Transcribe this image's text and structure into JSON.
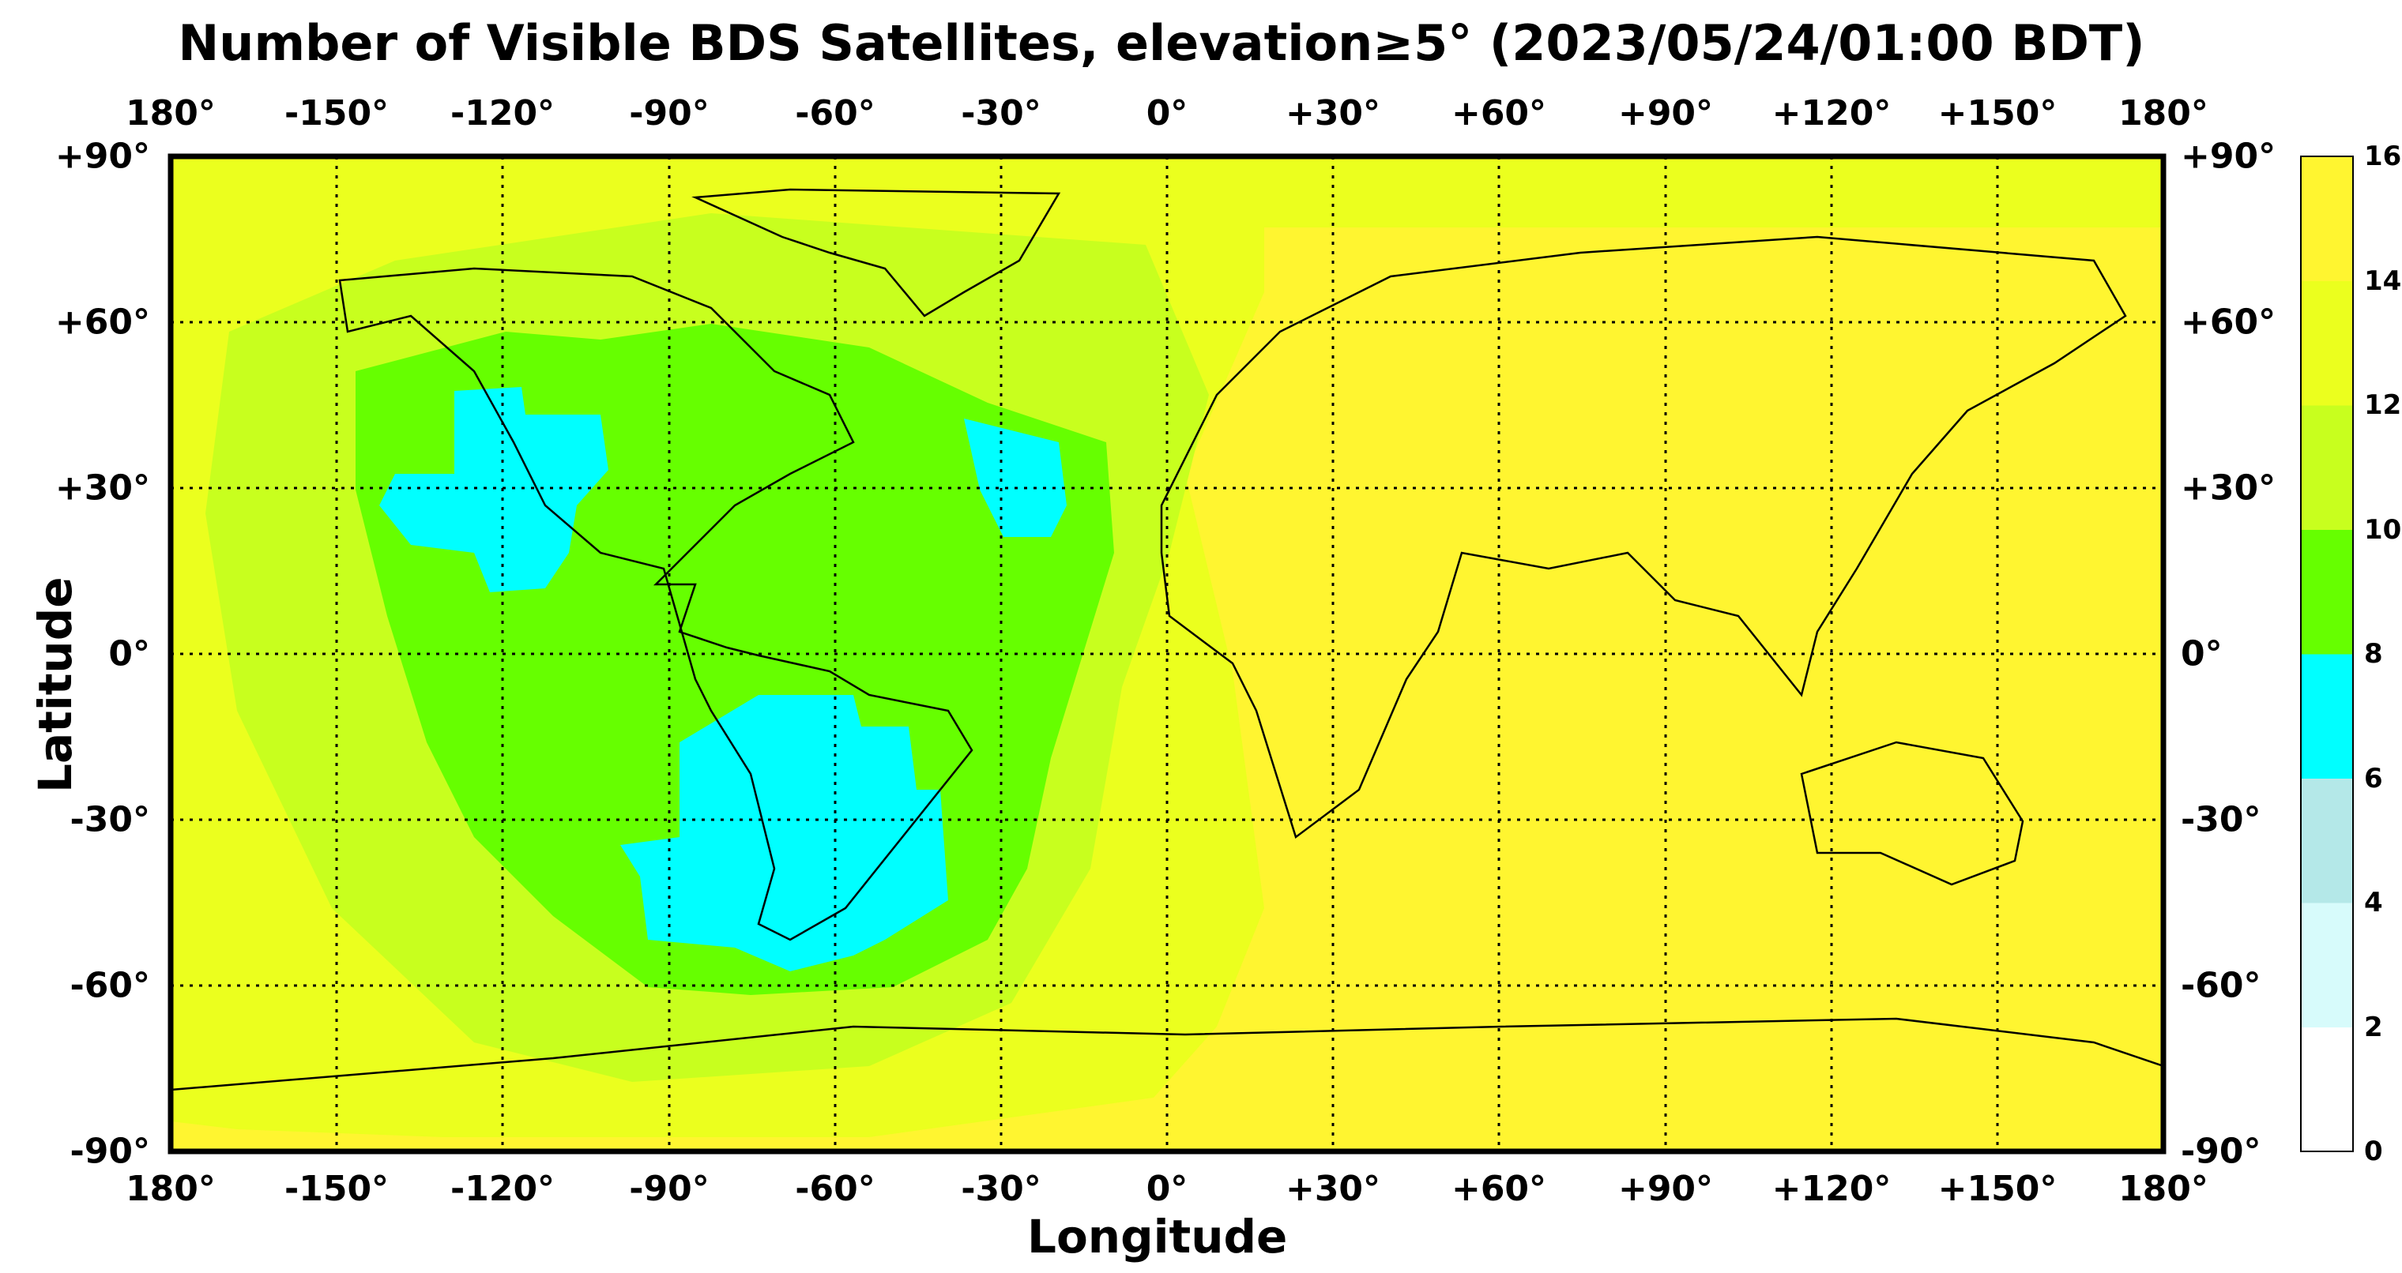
{
  "title": "Number of Visible BDS Satellites, elevation≥5° (2023/05/24/01:00 BDT)",
  "xlabel": "Longitude",
  "ylabel": "Latitude",
  "lon_ticks": [
    "180°",
    "-150°",
    "-120°",
    "-90°",
    "-60°",
    "-30°",
    "0°",
    "+30°",
    "+60°",
    "+90°",
    "+120°",
    "+150°",
    "180°"
  ],
  "lat_ticks": [
    "+90°",
    "+60°",
    "+30°",
    "0°",
    "-30°",
    "-60°",
    "-90°"
  ],
  "colorbar": {
    "ticks": [
      "16",
      "14",
      "12",
      "10",
      "8",
      "6",
      "4",
      "2",
      "0"
    ],
    "colors": [
      "#ffffff",
      "#d7fbfb",
      "#b4e8e8",
      "#00ffff",
      "#66ff00",
      "#c8ff1e",
      "#ebff1e",
      "#fff530"
    ]
  },
  "chart_data": {
    "type": "heatmap",
    "title": "Number of Visible BDS Satellites, elevation≥5° (2023/05/24/01:00 BDT)",
    "xlabel": "Longitude",
    "ylabel": "Latitude",
    "xlim": [
      -180,
      180
    ],
    "ylim": [
      -90,
      90
    ],
    "grid": true,
    "value_range": [
      0,
      16
    ],
    "levels": [
      0,
      2,
      4,
      6,
      8,
      10,
      12,
      14,
      16
    ],
    "regions": [
      {
        "value_range": [
          14,
          16
        ],
        "area": "Eastern hemisphere, Africa, Europe, Asia, Australia, Pacific"
      },
      {
        "value_range": [
          12,
          14
        ],
        "area": "Arctic band and outer Pacific ring"
      },
      {
        "value_range": [
          10,
          12
        ],
        "area": "Ring around Americas and South Atlantic"
      },
      {
        "value_range": [
          8,
          10
        ],
        "area": "Americas and Atlantic core"
      },
      {
        "value_range": [
          6,
          8
        ],
        "area": "Western North America, central Atlantic, southern South America"
      }
    ]
  }
}
